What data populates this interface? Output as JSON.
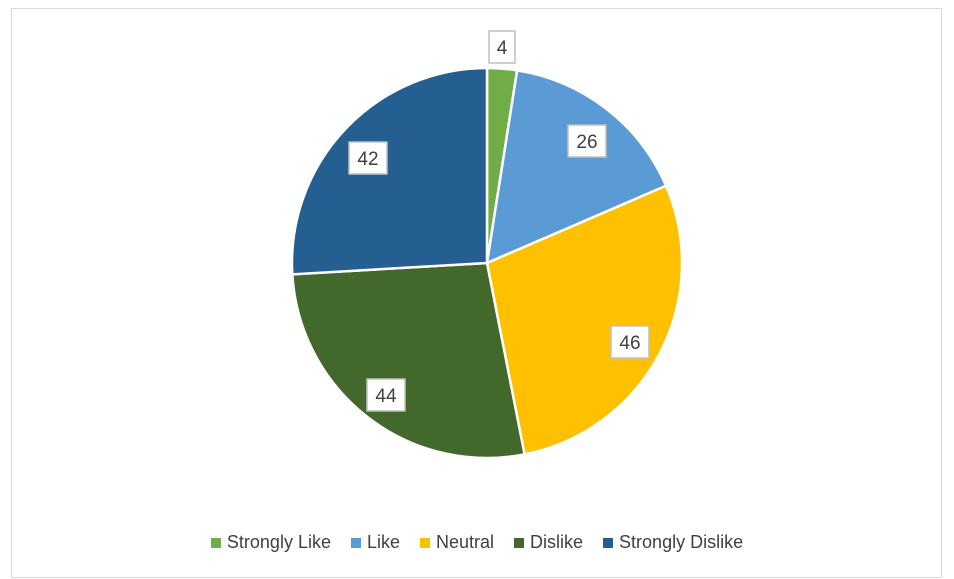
{
  "chart_data": {
    "type": "pie",
    "title": "",
    "categories": [
      "Strongly Like",
      "Like",
      "Neutral",
      "Dislike",
      "Strongly Dislike"
    ],
    "values": [
      4,
      26,
      46,
      44,
      42
    ],
    "colors": [
      "#70ad47",
      "#5b9bd5",
      "#ffc000",
      "#43682b",
      "#255e91"
    ],
    "data_labels": [
      "4",
      "26",
      "46",
      "44",
      "42"
    ],
    "legend": {
      "position": "bottom"
    }
  }
}
